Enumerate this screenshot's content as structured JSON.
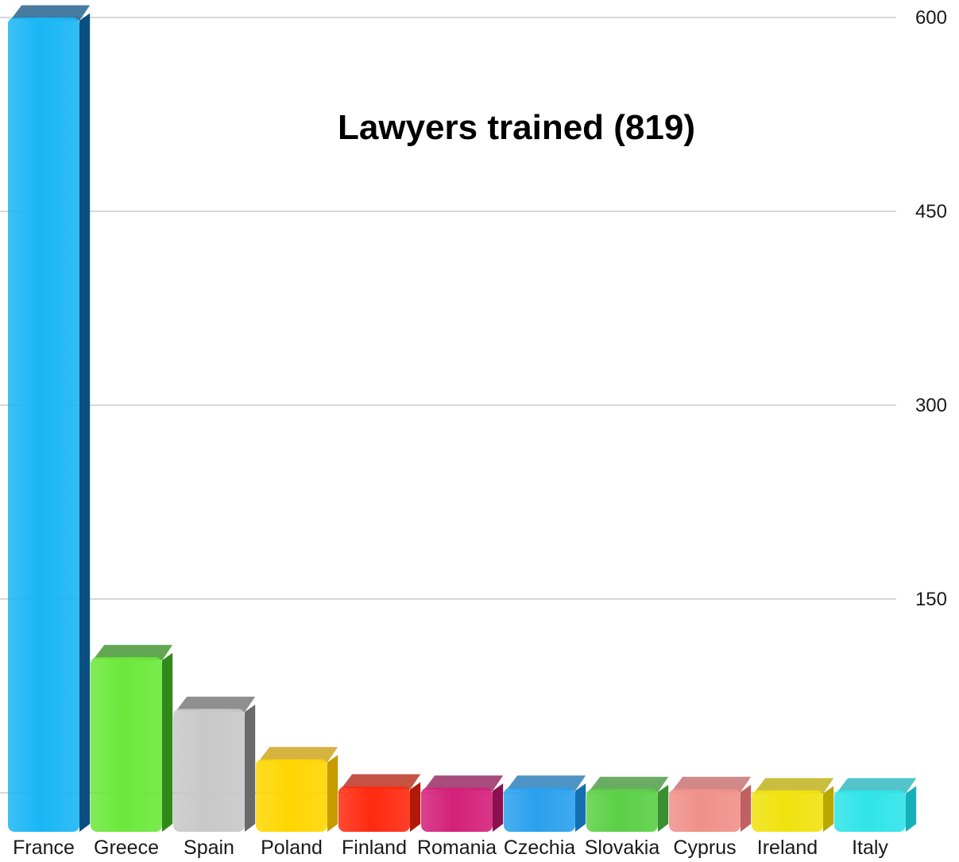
{
  "chart_data": {
    "type": "bar",
    "title": "Lawyers trained (819)",
    "xlabel": "",
    "ylabel": "",
    "categories": [
      "France",
      "Greece",
      "Spain",
      "Poland",
      "Finland",
      "Romania",
      "Czechia",
      "Slovakia",
      "Cyprus",
      "Ireland",
      "Italy"
    ],
    "values": [
      600,
      105,
      65,
      26,
      5,
      4,
      4,
      3,
      3,
      2,
      2
    ],
    "ylim": [
      -30,
      600
    ],
    "yticks": [
      "150",
      "300",
      "450",
      "600"
    ],
    "y_axis_side": "right",
    "grid": true,
    "legend": "none",
    "bar_style": "3d",
    "colors": {
      "France": "#19b6f5",
      "Greece": "#6be83a",
      "Spain": "#c8c8c8",
      "Poland": "#ffd600",
      "Finland": "#ff2a10",
      "Romania": "#d4207a",
      "Czechia": "#2aa0ee",
      "Slovakia": "#5bd046",
      "Cyprus": "#f0908a",
      "Ireland": "#f0e20e",
      "Italy": "#2fe4e8"
    },
    "side_colors": {
      "France": "#0a4f80",
      "Greece": "#2f8a1a",
      "Spain": "#6a6a6a",
      "Poland": "#c99a00",
      "Finland": "#b01a08",
      "Romania": "#8a1050",
      "Czechia": "#1470b0",
      "Slovakia": "#3a9030",
      "Cyprus": "#c06060",
      "Ireland": "#b8a800",
      "Italy": "#18b0b8"
    },
    "grid_color": "#cccccc"
  }
}
